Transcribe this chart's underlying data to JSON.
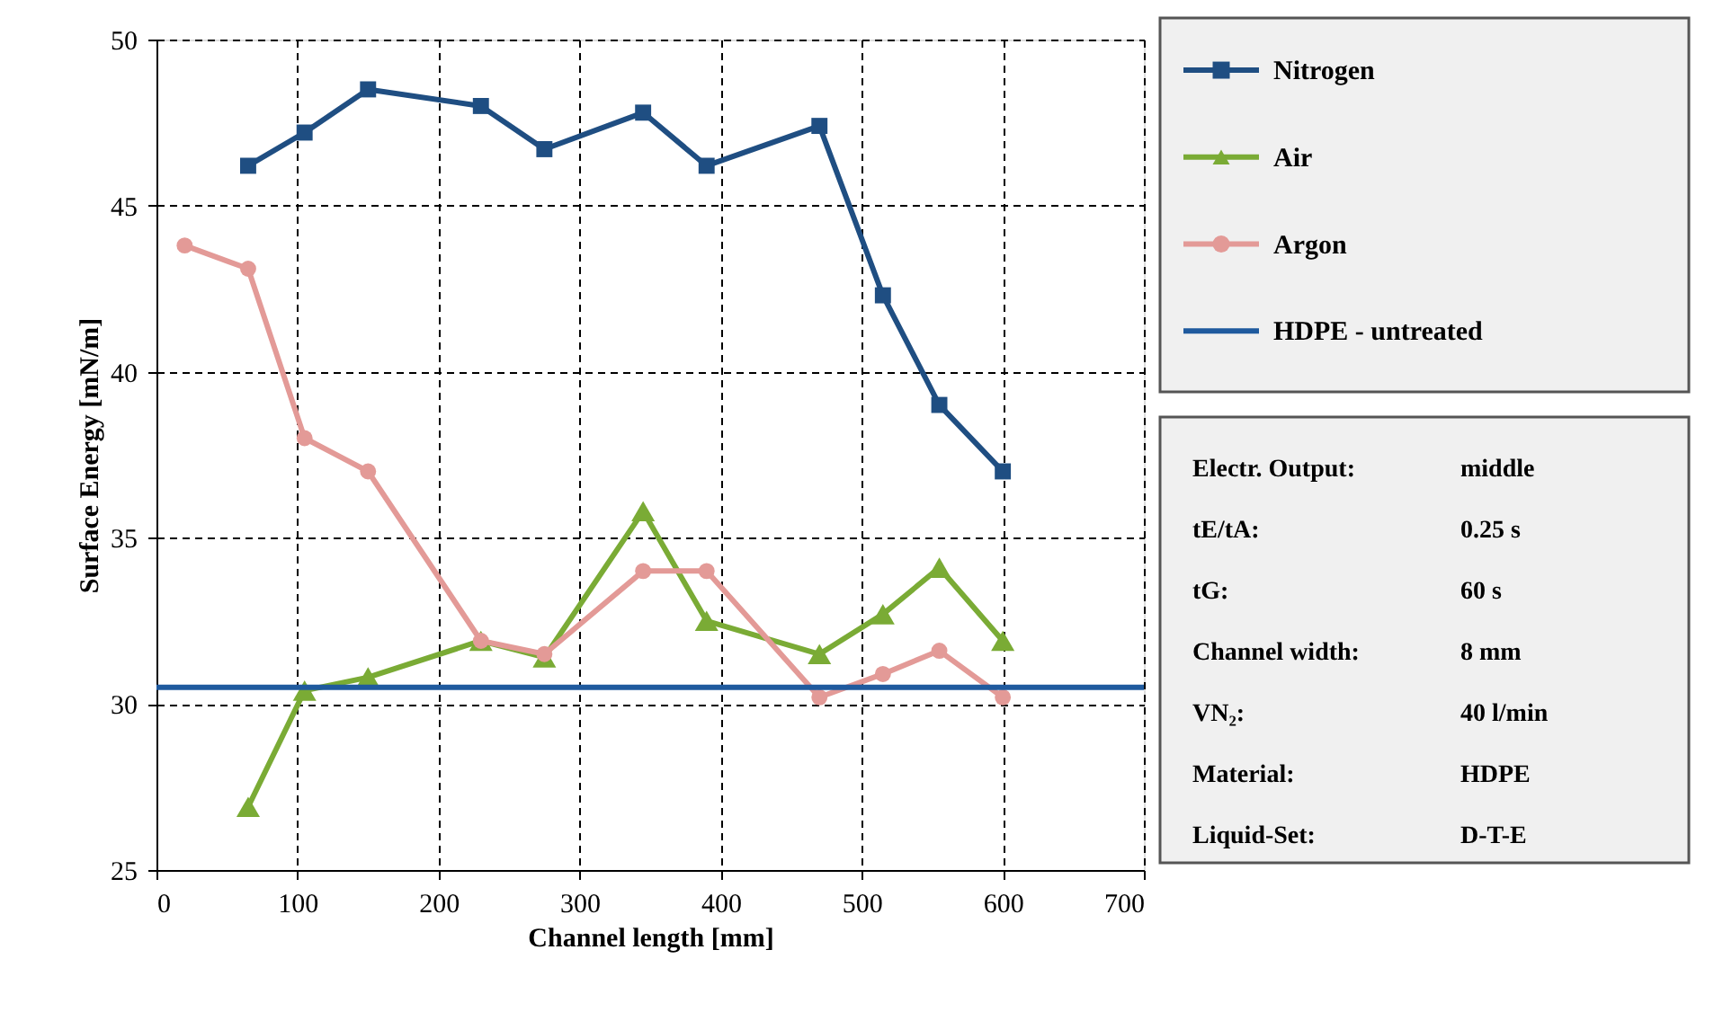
{
  "chart_data": {
    "type": "line",
    "xlabel": "Channel length [mm]",
    "ylabel": "Surface Energy [mN/m]",
    "xlim": [
      0,
      700
    ],
    "xticks": [
      0,
      100,
      200,
      300,
      400,
      500,
      600,
      700
    ],
    "ylim": [
      25,
      50
    ],
    "yticks": [
      25,
      30,
      35,
      40,
      45,
      50
    ],
    "grid": true,
    "legend": "right",
    "series": [
      {
        "name": "Nitrogen",
        "color": "#1f4e82",
        "marker": "square",
        "x": [
          65,
          105,
          150,
          230,
          275,
          345,
          390,
          470,
          515,
          555,
          600
        ],
        "values": [
          46.2,
          47.2,
          48.5,
          48.0,
          46.7,
          47.8,
          46.2,
          47.4,
          42.3,
          39.0,
          37.0
        ]
      },
      {
        "name": "Air",
        "color": "#7aab35",
        "marker": "triangle",
        "x": [
          65,
          105,
          150,
          230,
          275,
          345,
          390,
          470,
          515,
          555,
          600
        ],
        "values": [
          26.9,
          30.4,
          30.8,
          31.9,
          31.4,
          35.8,
          32.5,
          31.5,
          32.7,
          34.1,
          31.9
        ]
      },
      {
        "name": "Argon",
        "color": "#e39a97",
        "marker": "circle",
        "x": [
          20,
          65,
          105,
          150,
          230,
          275,
          345,
          390,
          470,
          515,
          555,
          600
        ],
        "values": [
          43.8,
          43.1,
          38.0,
          37.0,
          31.9,
          31.5,
          34.0,
          34.0,
          30.2,
          30.9,
          31.6,
          30.2
        ]
      },
      {
        "name": "HDPE - untreated",
        "color": "#1f5a9e",
        "marker": "none",
        "x": [
          0,
          700
        ],
        "values": [
          30.5,
          30.5
        ]
      }
    ],
    "annotations": [
      "Electr. Output:",
      "middle",
      "tE/tA:",
      "0.25 s",
      "tG:",
      "60 s",
      "Channel width:",
      "8 mm",
      "VN₂:",
      "40 l/min",
      "Material:",
      "HDPE",
      "Liquid-Set:",
      "D-T-E"
    ]
  }
}
